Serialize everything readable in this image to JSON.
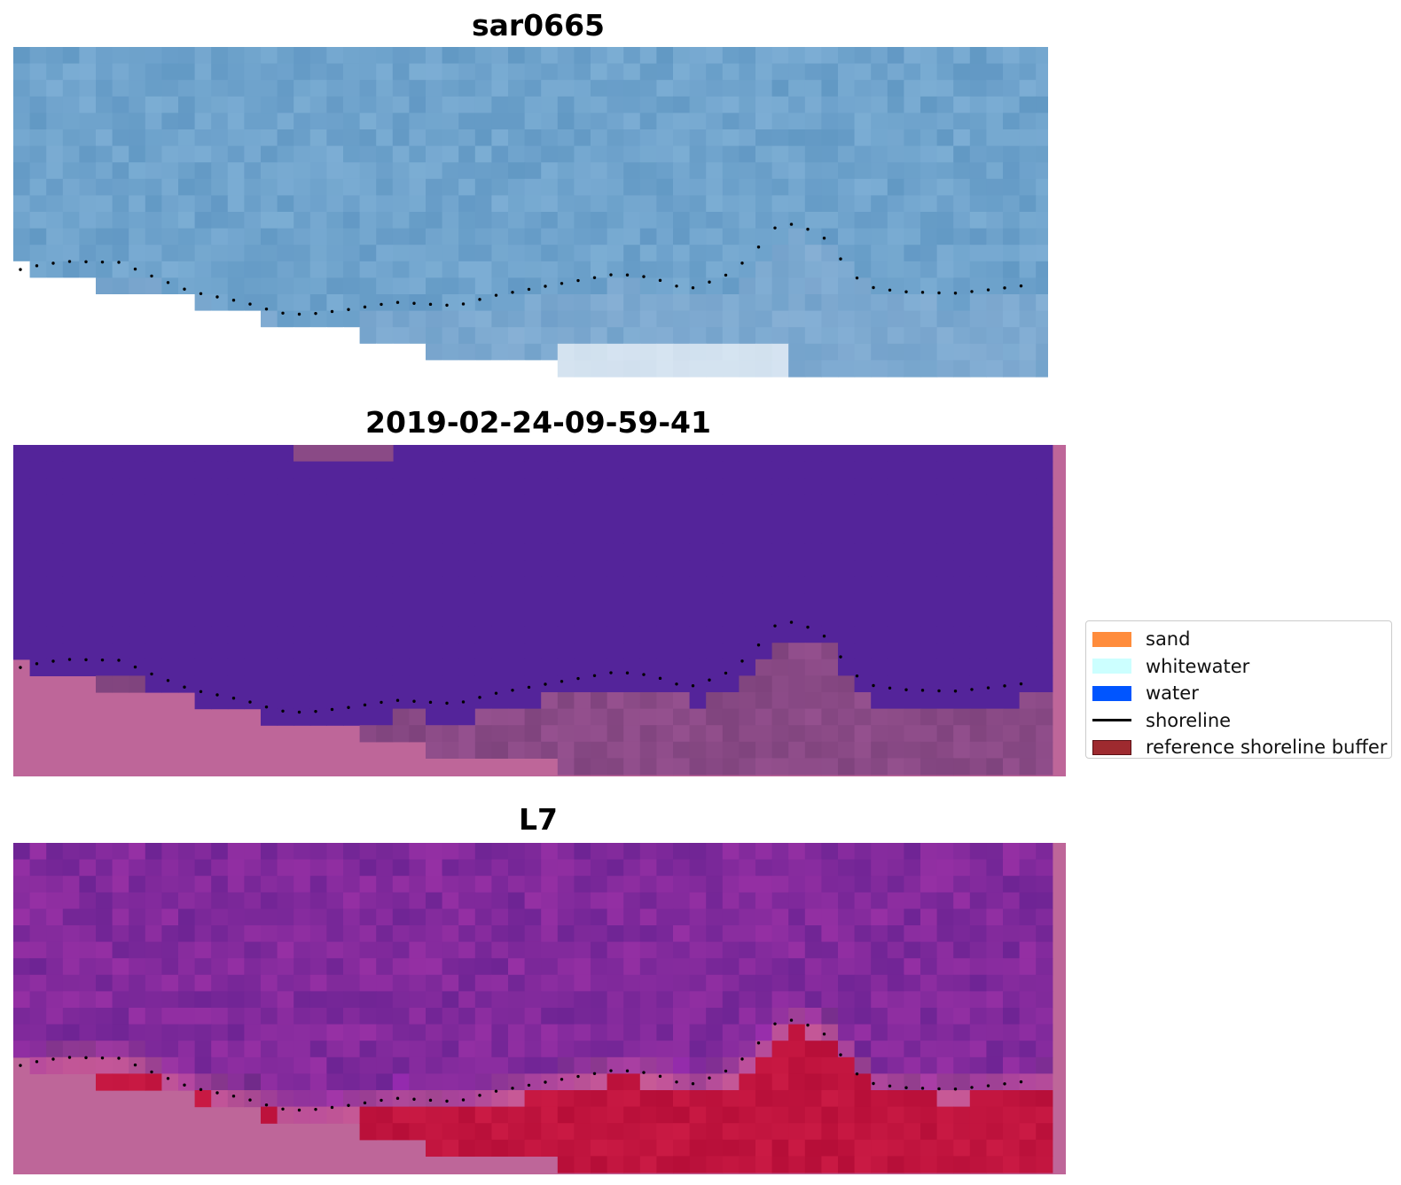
{
  "panels": [
    {
      "id": "rgb",
      "title": "sar0665"
    },
    {
      "id": "classified",
      "title": "2019-02-24-09-59-41"
    },
    {
      "id": "index",
      "title": "L7"
    }
  ],
  "legend": {
    "items": [
      {
        "label": "sand",
        "kind": "patch",
        "color": "#ff8c3c"
      },
      {
        "label": "whitewater",
        "kind": "patch",
        "color": "#ccffff"
      },
      {
        "label": "water",
        "kind": "patch",
        "color": "#0055ff"
      },
      {
        "label": "shoreline",
        "kind": "line",
        "color": "#000000"
      },
      {
        "label": "reference shoreline buffer",
        "kind": "patch",
        "color": "#9e2a2f"
      }
    ]
  },
  "colors": {
    "rgb_base": "#6fa3cc",
    "water_class": "#54249a",
    "land_mix": "#8a4a86",
    "nodata": "#be6699",
    "index_water": "#822a9c",
    "index_land": "#c0143e",
    "shoreline": "#000000"
  }
}
